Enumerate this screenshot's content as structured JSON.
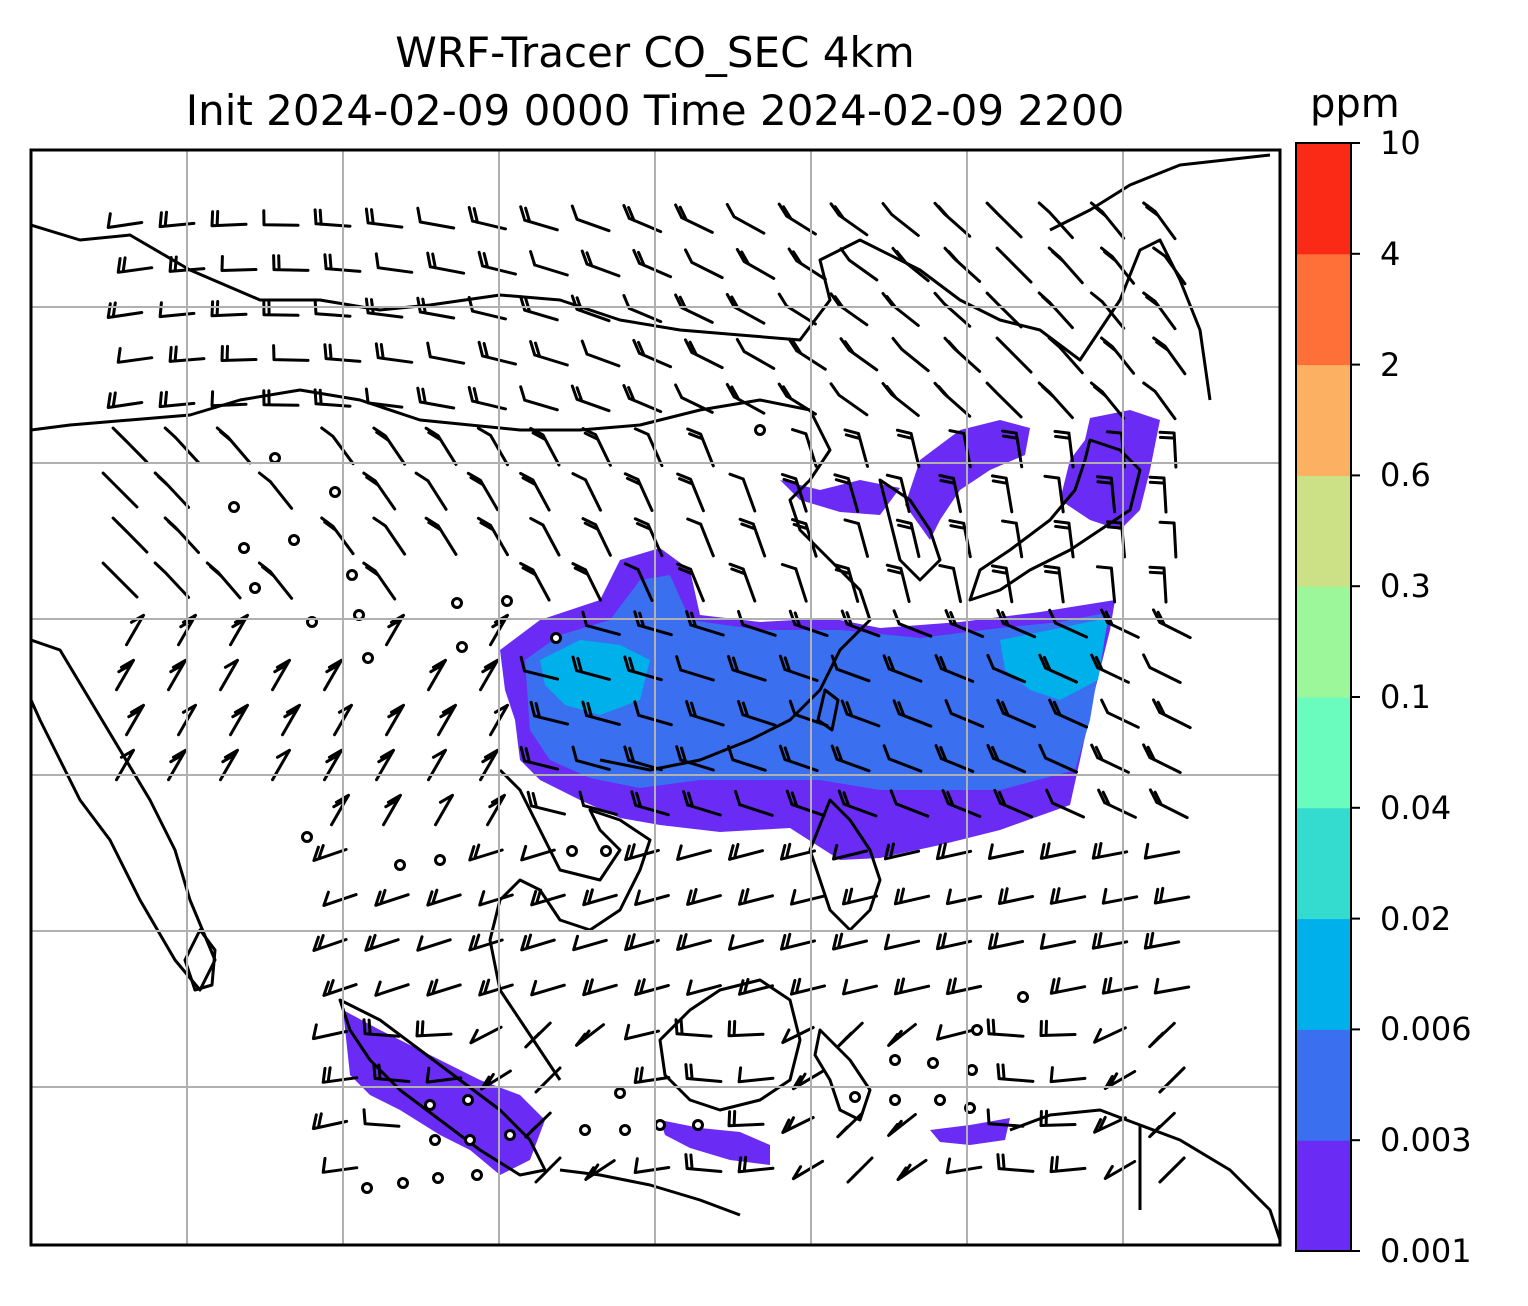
{
  "title": {
    "line1": "WRF-Tracer CO_SEC 4km",
    "line2": "Init 2024-02-09 0000 Time 2024-02-09 2200"
  },
  "colorbar": {
    "unit": "ppm",
    "levels": [
      "0.001",
      "0.003",
      "0.006",
      "0.02",
      "0.04",
      "0.1",
      "0.3",
      "0.6",
      "2",
      "4",
      "10"
    ],
    "colors": [
      "#6a2cf5",
      "#3a6ff0",
      "#00b0ea",
      "#33dccf",
      "#6afcbf",
      "#9cf79a",
      "#cce086",
      "#fcb062",
      "#fe7038",
      "#fb2a16"
    ]
  },
  "map": {
    "frame_color": "#000000",
    "grid_color": "#b0b0b0",
    "coastline_color": "#000000",
    "wind_barb_color": "#000000",
    "plume_colors": {
      "lowest": "#6a2cf5",
      "low": "#3a6ff0",
      "mid": "#00b0ea"
    }
  }
}
